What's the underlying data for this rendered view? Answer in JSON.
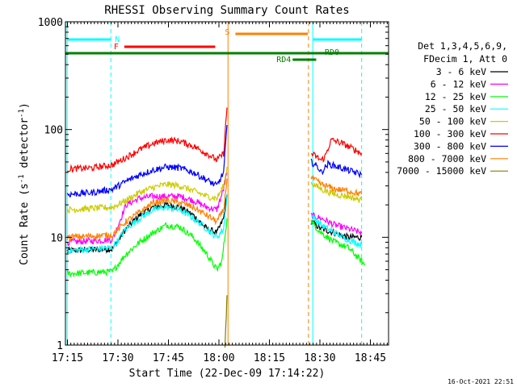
{
  "chart_data": {
    "type": "line",
    "title": "RHESSI Observing Summary Count Rates",
    "xlabel": "Start Time (22-Dec-09 17:14:22)",
    "ylabel": "Count Rate (s",
    "ylabel_sup": "-1",
    "ylabel_tail": " detector",
    "ylabel_tail_sup": "-1",
    "ylabel_close": ")",
    "y_scale": "log",
    "ylim": [
      1,
      1000
    ],
    "xlim_minutes": [
      0,
      96
    ],
    "x_ticks": [
      {
        "label": "17:15",
        "t": 0.6
      },
      {
        "label": "17:30",
        "t": 15.6
      },
      {
        "label": "17:45",
        "t": 30.6
      },
      {
        "label": "18:00",
        "t": 45.6
      },
      {
        "label": "18:15",
        "t": 60.6
      },
      {
        "label": "18:30",
        "t": 75.6
      },
      {
        "label": "18:45",
        "t": 90.6
      }
    ],
    "y_tick_labels": [
      {
        "label": "1",
        "v": 1
      },
      {
        "label": "10",
        "v": 10
      },
      {
        "label": "100",
        "v": 100
      },
      {
        "label": "1000",
        "v": 1000
      }
    ],
    "legend_header": [
      "Det 1,3,4,5,6,9,",
      "FDecim 1, Att 0"
    ],
    "series": [
      {
        "name": "3 - 6 keV",
        "color": "#000000",
        "segments": [
          [
            [
              0.5,
              7.5
            ],
            [
              14,
              7.8
            ],
            [
              18,
              12
            ],
            [
              22,
              16
            ],
            [
              26,
              19
            ],
            [
              30,
              20
            ],
            [
              34,
              19
            ],
            [
              38,
              16
            ],
            [
              42,
              12
            ],
            [
              45,
              11
            ],
            [
              47,
              15
            ],
            [
              48,
              25
            ]
          ],
          [
            [
              73,
              14
            ],
            [
              76,
              12
            ],
            [
              80,
              11
            ],
            [
              84,
              10
            ],
            [
              88,
              10
            ]
          ]
        ]
      },
      {
        "name": "6 - 12 keV",
        "color": "#ff00ff",
        "segments": [
          [
            [
              0.5,
              9
            ],
            [
              14,
              9.5
            ],
            [
              18,
              20
            ],
            [
              22,
              23
            ],
            [
              26,
              24
            ],
            [
              30,
              24
            ],
            [
              34,
              24
            ],
            [
              38,
              22
            ],
            [
              42,
              19
            ],
            [
              45,
              18
            ],
            [
              47,
              28
            ],
            [
              48,
              40
            ]
          ],
          [
            [
              73,
              16
            ],
            [
              76,
              15
            ],
            [
              80,
              13
            ],
            [
              84,
              12
            ],
            [
              88,
              11
            ]
          ]
        ]
      },
      {
        "name": "12 - 25 keV",
        "color": "#00ff00",
        "segments": [
          [
            [
              0.5,
              4.6
            ],
            [
              14,
              4.8
            ],
            [
              18,
              7
            ],
            [
              22,
              9
            ],
            [
              26,
              11
            ],
            [
              30,
              13
            ],
            [
              34,
              12.5
            ],
            [
              38,
              10
            ],
            [
              42,
              7
            ],
            [
              45,
              5
            ],
            [
              46.5,
              6
            ],
            [
              48,
              15
            ]
          ],
          [
            [
              73,
              14
            ],
            [
              76,
              11
            ],
            [
              80,
              9
            ],
            [
              84,
              8
            ],
            [
              88,
              6
            ],
            [
              89,
              5.5
            ]
          ]
        ]
      },
      {
        "name": "25 - 50 keV",
        "color": "#00ffff",
        "segments": [
          [
            [
              0.5,
              7.5
            ],
            [
              14,
              8
            ],
            [
              18,
              12
            ],
            [
              22,
              15
            ],
            [
              26,
              18
            ],
            [
              30,
              19
            ],
            [
              34,
              18
            ],
            [
              38,
              15
            ],
            [
              42,
              12
            ],
            [
              45,
              10
            ],
            [
              47,
              12
            ],
            [
              48,
              25
            ]
          ],
          [
            [
              73,
              16
            ],
            [
              76,
              13
            ],
            [
              80,
              11
            ],
            [
              84,
              9.5
            ],
            [
              88,
              8.5
            ]
          ]
        ]
      },
      {
        "name": "50 - 100 keV",
        "color": "#cccc00",
        "segments": [
          [
            [
              0.5,
              18
            ],
            [
              14,
              19
            ],
            [
              18,
              22
            ],
            [
              22,
              26
            ],
            [
              26,
              29
            ],
            [
              30,
              31
            ],
            [
              34,
              30
            ],
            [
              38,
              27
            ],
            [
              42,
              24
            ],
            [
              45,
              23
            ],
            [
              47,
              30
            ],
            [
              48,
              45
            ]
          ],
          [
            [
              73,
              32
            ],
            [
              76,
              28
            ],
            [
              80,
              25
            ],
            [
              84,
              24
            ],
            [
              88,
              22
            ]
          ]
        ]
      },
      {
        "name": "100 - 300 keV",
        "color": "#ff0000",
        "segments": [
          [
            [
              0.5,
              43
            ],
            [
              8,
              44
            ],
            [
              14,
              47
            ],
            [
              18,
              55
            ],
            [
              22,
              65
            ],
            [
              26,
              74
            ],
            [
              30,
              80
            ],
            [
              34,
              78
            ],
            [
              38,
              70
            ],
            [
              42,
              60
            ],
            [
              45,
              52
            ],
            [
              47,
              60
            ],
            [
              48,
              160
            ]
          ],
          [
            [
              73,
              60
            ],
            [
              76,
              52
            ],
            [
              77,
              55
            ],
            [
              79,
              80
            ],
            [
              82,
              75
            ],
            [
              86,
              65
            ],
            [
              88,
              60
            ]
          ]
        ]
      },
      {
        "name": "300 - 800 keV",
        "color": "#0000ff",
        "segments": [
          [
            [
              0.5,
              25
            ],
            [
              8,
              26
            ],
            [
              14,
              28
            ],
            [
              18,
              33
            ],
            [
              22,
              38
            ],
            [
              26,
              42
            ],
            [
              30,
              45
            ],
            [
              34,
              44
            ],
            [
              38,
              40
            ],
            [
              42,
              34
            ],
            [
              45,
              30
            ],
            [
              47,
              40
            ],
            [
              48,
              110
            ]
          ],
          [
            [
              73,
              50
            ],
            [
              75,
              45
            ],
            [
              76,
              40
            ],
            [
              78,
              48
            ],
            [
              82,
              44
            ],
            [
              86,
              40
            ],
            [
              88,
              38
            ]
          ]
        ]
      },
      {
        "name": "800 - 7000 keV",
        "color": "#ff8000",
        "segments": [
          [
            [
              0.5,
              10
            ],
            [
              14,
              10.5
            ],
            [
              18,
              14
            ],
            [
              22,
              17
            ],
            [
              26,
              21
            ],
            [
              30,
              22
            ],
            [
              34,
              21
            ],
            [
              38,
              19
            ],
            [
              42,
              16
            ],
            [
              45,
              14
            ],
            [
              47,
              18
            ],
            [
              48,
              35
            ]
          ],
          [
            [
              73,
              36
            ],
            [
              76,
              31
            ],
            [
              80,
              28
            ],
            [
              84,
              27
            ],
            [
              88,
              25
            ]
          ]
        ]
      },
      {
        "name": "7000 - 15000 keV",
        "color": "#808000",
        "segments": [
          [
            [
              47.4,
              1.0
            ],
            [
              47.8,
              1.8
            ],
            [
              48,
              2.9
            ]
          ]
        ]
      }
    ],
    "annotations": {
      "N": {
        "label": "N",
        "color": "#00ffff",
        "segments": [
          [
            0.5,
            13.5
          ],
          [
            73.5,
            88
          ]
        ]
      },
      "F": {
        "label": "F",
        "color": "#ff0000",
        "segments": [
          [
            17.5,
            44.5
          ]
        ]
      },
      "S": {
        "label": "S",
        "color": "#ff8000",
        "segments": [
          [
            50.5,
            72
          ]
        ]
      },
      "RD0": {
        "label": "RD0",
        "color": "#008000",
        "segments": [
          [
            0,
            96
          ]
        ]
      },
      "RD4": {
        "label": "RD4",
        "color": "#008000",
        "segments": [
          [
            67.5,
            74.5
          ]
        ]
      }
    },
    "vlines": [
      {
        "t": 0.5,
        "color": "#00ffff",
        "style": "solid"
      },
      {
        "t": 13.5,
        "color": "#00ffff",
        "style": "dashed"
      },
      {
        "t": 73.5,
        "color": "#00ffff",
        "style": "solid"
      },
      {
        "t": 88,
        "color": "#00ffff",
        "style": "dashed"
      },
      {
        "t": 48.3,
        "color": "#ff8000",
        "style": "solid"
      },
      {
        "t": 72.2,
        "color": "#ff8000",
        "style": "dashed"
      }
    ]
  },
  "footer_date": "16-Oct-2021 22:51"
}
